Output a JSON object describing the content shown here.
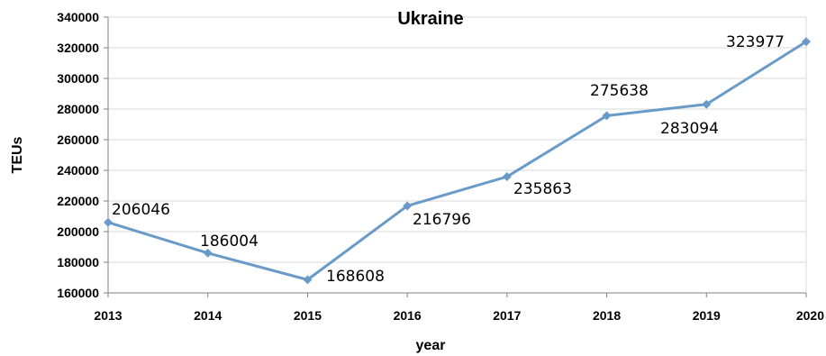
{
  "chart_data": {
    "type": "line",
    "title": "Ukraine",
    "xlabel": "year",
    "ylabel": "TEUs",
    "x": [
      "2013",
      "2014",
      "2015",
      "2016",
      "2017",
      "2018",
      "2019",
      "2020"
    ],
    "series": [
      {
        "values": [
          206046,
          186004,
          168608,
          216796,
          235863,
          275638,
          283094,
          323977
        ],
        "color": "#6a9bc8"
      }
    ],
    "data_labels": [
      "206046",
      "186004",
      "168608",
      "216796",
      "235863",
      "275638",
      "283094",
      "323977"
    ],
    "ylim": [
      160000,
      340000
    ],
    "yticks": [
      160000,
      180000,
      200000,
      220000,
      240000,
      260000,
      280000,
      300000,
      320000,
      340000
    ],
    "ytick_labels": [
      "160000",
      "180000",
      "200000",
      "220000",
      "240000",
      "260000",
      "280000",
      "300000",
      "320000",
      "340000"
    ],
    "grid": true,
    "legend": "none"
  }
}
